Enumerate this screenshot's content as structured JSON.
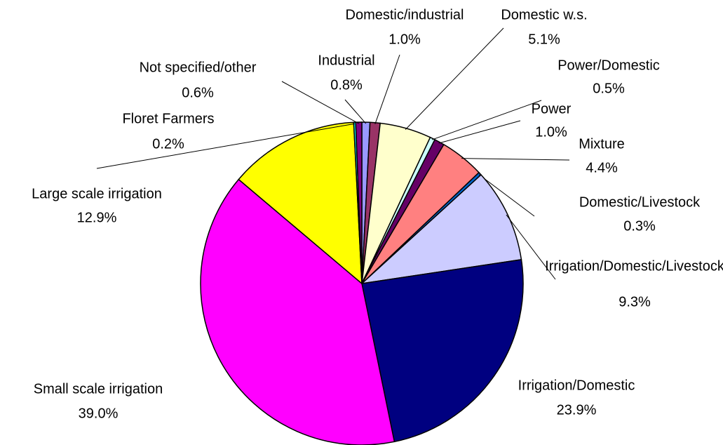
{
  "chart_data": {
    "type": "pie",
    "categories": [
      "Industrial",
      "Domestic/industrial",
      "Domestic w.s.",
      "Power/Domestic",
      "Power",
      "Mixture",
      "Domestic/Livestock",
      "Irrigation/Domestic/Livestock",
      "Irrigation/Domestic",
      "Small scale irrigation",
      "Large scale irrigation",
      "Floret Farmers",
      "Not specified/other"
    ],
    "values": [
      0.8,
      1.0,
      5.1,
      0.5,
      1.0,
      4.4,
      0.3,
      9.3,
      23.9,
      39.0,
      12.9,
      0.2,
      0.6
    ],
    "value_labels": [
      "0.8%",
      "1.0%",
      "5.1%",
      "0.5%",
      "1.0%",
      "4.4%",
      "0.3%",
      "9.3%",
      "23.9%",
      "39.0%",
      "12.9%",
      "0.2%",
      "0.6%"
    ],
    "colors": [
      "#9999ff",
      "#993366",
      "#ffffcc",
      "#ccffff",
      "#660066",
      "#ff8080",
      "#0066cc",
      "#ccccff",
      "#000080",
      "#ff00ff",
      "#ffff00",
      "#00ffff",
      "#800080"
    ]
  }
}
